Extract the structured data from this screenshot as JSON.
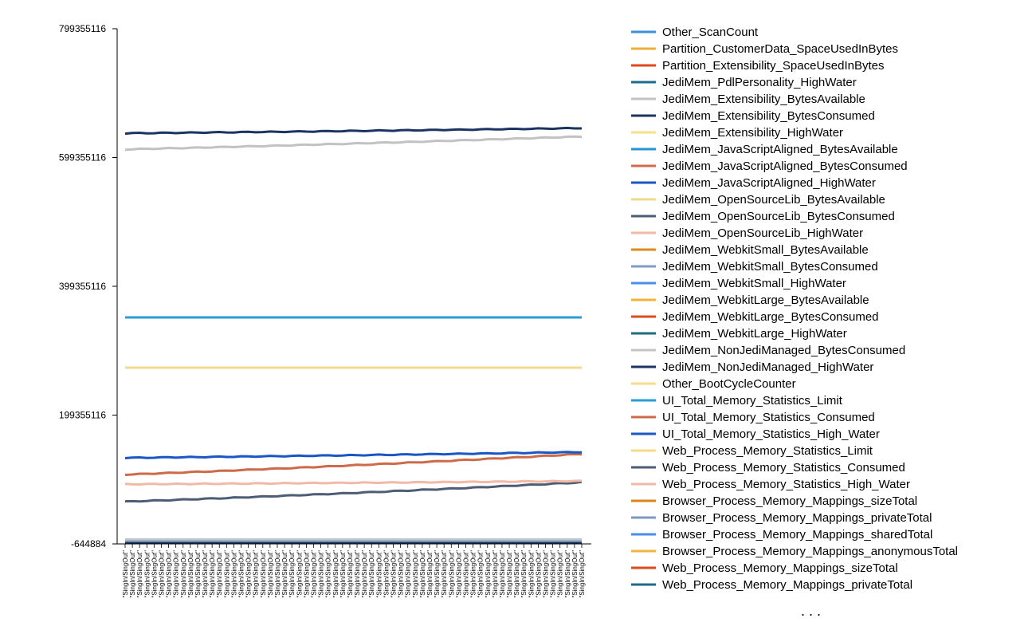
{
  "chart_data": {
    "type": "line",
    "title": "",
    "xlabel": "",
    "ylabel": "",
    "y_ticks": [
      799355116,
      599355116,
      399355116,
      199355116,
      -644884
    ],
    "ylim": [
      -644884,
      799355116
    ],
    "x_tick_label": "\"SingIn/SingOut\"",
    "x_count": 64,
    "grid": false,
    "legend_position": "right",
    "legend_more": ". . .",
    "series": [
      {
        "name": "Other_ScanCount",
        "color": "#3d8fd8",
        "start": null,
        "end": null
      },
      {
        "name": "Partition_CustomerData_SpaceUsedInBytes",
        "color": "#f0ae3c",
        "start": null,
        "end": null
      },
      {
        "name": "Partition_Extensibility_SpaceUsedInBytes",
        "color": "#dc4a20",
        "start": null,
        "end": null
      },
      {
        "name": "JediMem_PdlPersonality_HighWater",
        "color": "#1b6b8e",
        "start": null,
        "end": null
      },
      {
        "name": "JediMem_Extensibility_BytesAvailable",
        "color": "#c2c2c2",
        "start": 612000000,
        "end": 632000000
      },
      {
        "name": "JediMem_Extensibility_BytesConsumed",
        "color": "#1b3563",
        "start": 637000000,
        "end": 645000000
      },
      {
        "name": "JediMem_Extensibility_HighWater",
        "color": "#f6e08a",
        "start": null,
        "end": null
      },
      {
        "name": "JediMem_JavaScriptAligned_BytesAvailable",
        "color": "#2596d2",
        "start": null,
        "end": null
      },
      {
        "name": "JediMem_JavaScriptAligned_BytesConsumed",
        "color": "#cc6b4d",
        "start": null,
        "end": null
      },
      {
        "name": "JediMem_JavaScriptAligned_HighWater",
        "color": "#1a56c6",
        "start": null,
        "end": null
      },
      {
        "name": "JediMem_OpenSourceLib_BytesAvailable",
        "color": "#efd98a",
        "start": null,
        "end": null
      },
      {
        "name": "JediMem_OpenSourceLib_BytesConsumed",
        "color": "#4d5d75",
        "start": null,
        "end": null
      },
      {
        "name": "JediMem_OpenSourceLib_HighWater",
        "color": "#f0b9a6",
        "start": null,
        "end": null
      },
      {
        "name": "JediMem_WebkitSmall_BytesAvailable",
        "color": "#dd8a1e",
        "start": null,
        "end": null
      },
      {
        "name": "JediMem_WebkitSmall_BytesConsumed",
        "color": "#7f9bc6",
        "start": null,
        "end": null
      },
      {
        "name": "JediMem_WebkitSmall_HighWater",
        "color": "#4a8ee6",
        "start": null,
        "end": null
      },
      {
        "name": "JediMem_WebkitLarge_BytesAvailable",
        "color": "#f1b43a",
        "start": null,
        "end": null
      },
      {
        "name": "JediMem_WebkitLarge_BytesConsumed",
        "color": "#db4f1f",
        "start": null,
        "end": null
      },
      {
        "name": "JediMem_WebkitLarge_HighWater",
        "color": "#1d6c7e",
        "start": null,
        "end": null
      },
      {
        "name": "JediMem_NonJediManaged_BytesConsumed",
        "color": "#c4c4c4",
        "start": null,
        "end": null
      },
      {
        "name": "JediMem_NonJediManaged_HighWater",
        "color": "#1c3460",
        "start": null,
        "end": null
      },
      {
        "name": "Other_BootCycleCounter",
        "color": "#f7dc8e",
        "start": null,
        "end": null
      },
      {
        "name": "UI_Total_Memory_Statistics_Limit",
        "color": "#279ed4",
        "start": 351000000,
        "end": 351000000
      },
      {
        "name": "UI_Total_Memory_Statistics_Consumed",
        "color": "#cd6a4a",
        "start": 107000000,
        "end": 139000000
      },
      {
        "name": "UI_Total_Memory_Statistics_High_Water",
        "color": "#1a56c6",
        "start": 133000000,
        "end": 142000000
      },
      {
        "name": "Web_Process_Memory_Statistics_Limit",
        "color": "#f5da8a",
        "start": 273000000,
        "end": 273000000
      },
      {
        "name": "Web_Process_Memory_Statistics_Consumed",
        "color": "#4d5d75",
        "start": 65000000,
        "end": 95000000
      },
      {
        "name": "Web_Process_Memory_Statistics_High_Water",
        "color": "#f2baa6",
        "start": 92000000,
        "end": 97000000
      },
      {
        "name": "Browser_Process_Memory_Mappings_sizeTotal",
        "color": "#d9861c",
        "start": null,
        "end": null
      },
      {
        "name": "Browser_Process_Memory_Mappings_privateTotal",
        "color": "#7d98c4",
        "start": null,
        "end": null
      },
      {
        "name": "Browser_Process_Memory_Mappings_sharedTotal",
        "color": "#4a8ee6",
        "start": null,
        "end": null
      },
      {
        "name": "Browser_Process_Memory_Mappings_anonymousTotal",
        "color": "#f2b441",
        "start": null,
        "end": null
      },
      {
        "name": "Web_Process_Memory_Mappings_sizeTotal",
        "color": "#d94c1d",
        "start": null,
        "end": null
      },
      {
        "name": "Web_Process_Memory_Mappings_privateTotal",
        "color": "#1e6a8a",
        "start": null,
        "end": null
      }
    ]
  }
}
